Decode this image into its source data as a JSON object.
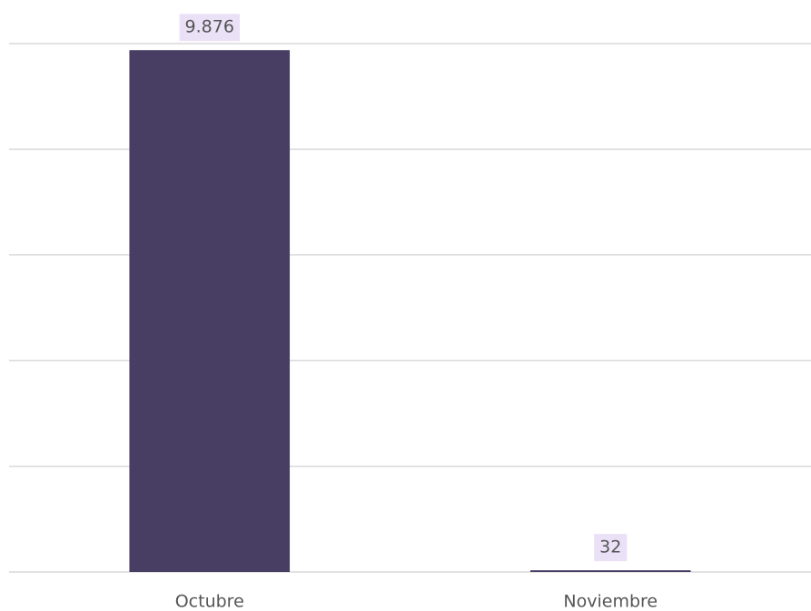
{
  "chart_data": {
    "type": "bar",
    "categories": [
      "Octubre",
      "Noviembre"
    ],
    "values": [
      9876,
      32
    ],
    "value_labels": [
      "9.876",
      "32"
    ],
    "color": "#483d63",
    "ylim": [
      0,
      10000
    ],
    "yticks": [
      0,
      2000,
      4000,
      6000,
      8000,
      10000
    ],
    "grid": true
  }
}
